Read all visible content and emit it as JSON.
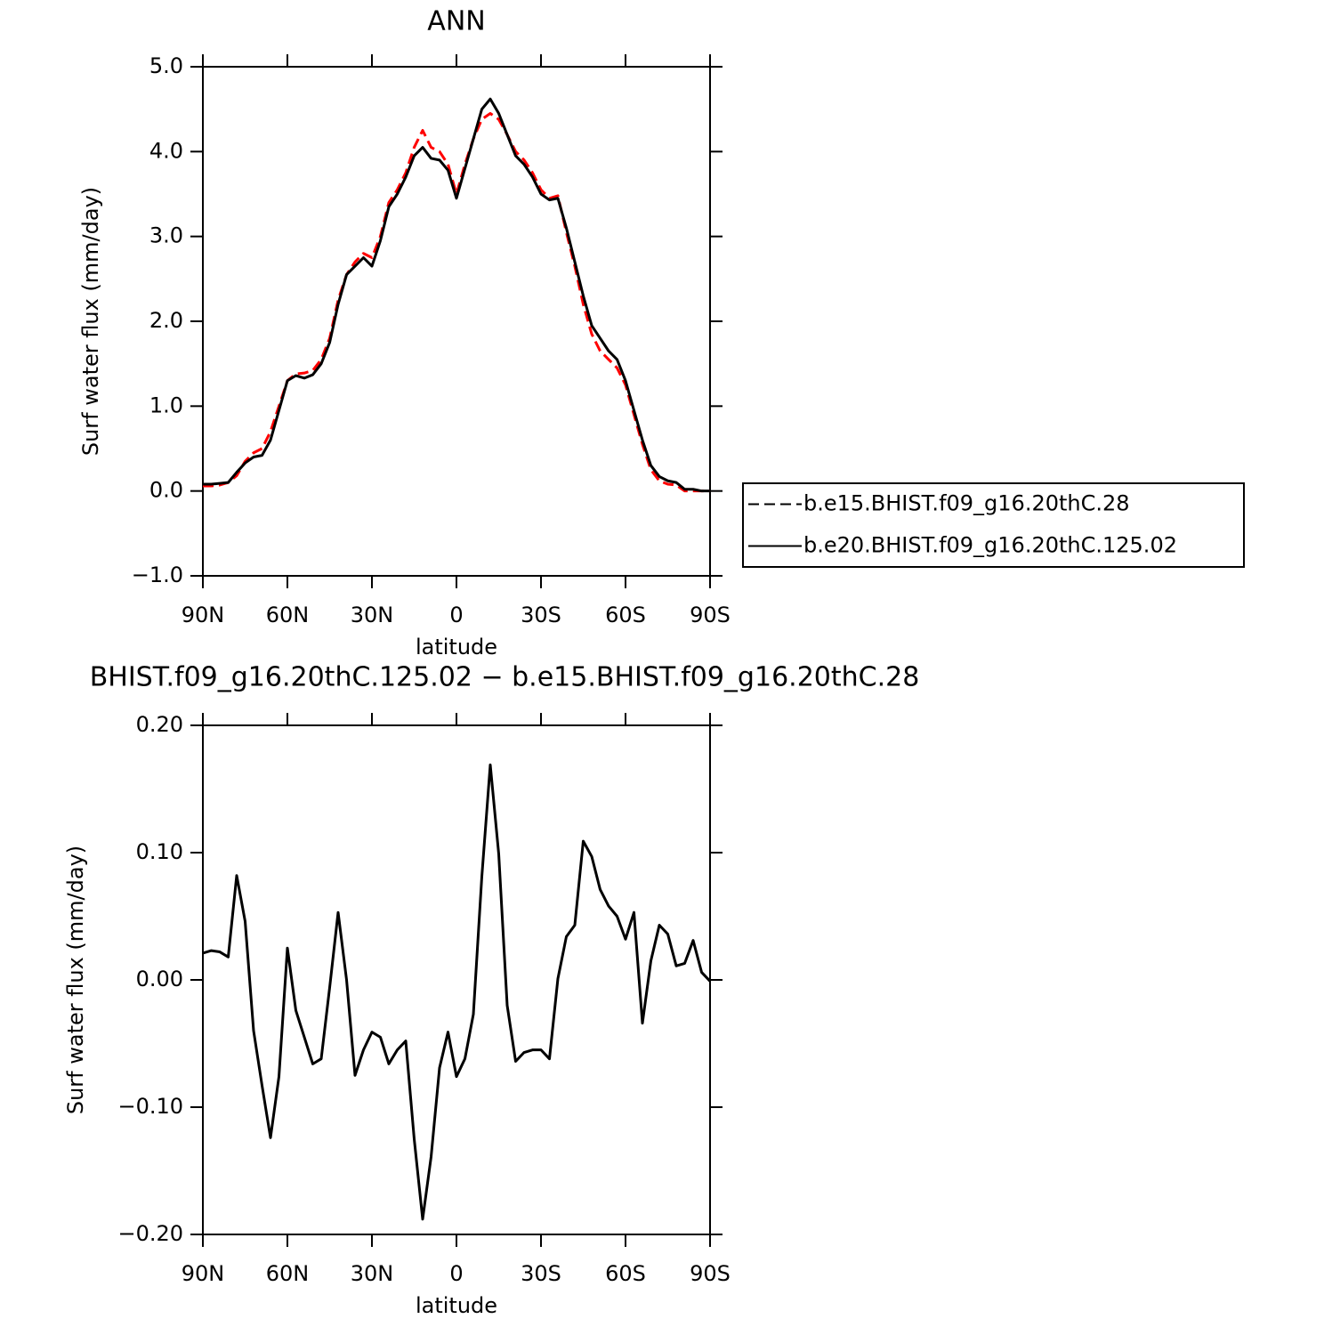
{
  "chart_data": [
    {
      "type": "line",
      "title": "ANN",
      "xlabel": "latitude",
      "ylabel": "Surf water flux (mm/day)",
      "x": [
        90,
        87,
        84,
        81,
        78,
        75,
        72,
        69,
        66,
        63,
        60,
        57,
        54,
        51,
        48,
        45,
        42,
        39,
        36,
        33,
        30,
        27,
        24,
        21,
        18,
        15,
        12,
        9,
        6,
        3,
        0,
        -3,
        -6,
        -9,
        -12,
        -15,
        -18,
        -21,
        -24,
        -27,
        -30,
        -33,
        -36,
        -39,
        -42,
        -45,
        -48,
        -51,
        -54,
        -57,
        -60,
        -63,
        -66,
        -69,
        -72,
        -75,
        -78,
        -81,
        -84,
        -87,
        -90
      ],
      "series": [
        {
          "name": "b.e15.BHIST.f09_g16.20thC.28",
          "color": "#ff0000",
          "dash": true,
          "values": [
            0.06,
            0.06,
            0.07,
            0.1,
            0.18,
            0.35,
            0.45,
            0.5,
            0.7,
            1.0,
            1.3,
            1.38,
            1.39,
            1.42,
            1.55,
            1.8,
            2.25,
            2.55,
            2.7,
            2.8,
            2.75,
            3.0,
            3.4,
            3.55,
            3.75,
            4.05,
            4.25,
            4.05,
            4.0,
            3.85,
            3.5,
            3.85,
            4.15,
            4.38,
            4.45,
            4.38,
            4.2,
            4.0,
            3.9,
            3.75,
            3.55,
            3.45,
            3.48,
            3.05,
            2.65,
            2.2,
            1.85,
            1.65,
            1.55,
            1.45,
            1.25,
            0.9,
            0.55,
            0.25,
            0.12,
            0.08,
            0.07,
            0.0,
            0.0,
            0.0,
            0.0
          ]
        },
        {
          "name": "b.e20.BHIST.f09_g16.20thC.125.02",
          "color": "#000000",
          "dash": false,
          "values": [
            0.08,
            0.08,
            0.09,
            0.1,
            0.22,
            0.33,
            0.4,
            0.42,
            0.6,
            0.95,
            1.3,
            1.36,
            1.33,
            1.37,
            1.5,
            1.75,
            2.2,
            2.55,
            2.65,
            2.75,
            2.65,
            2.95,
            3.35,
            3.5,
            3.7,
            3.95,
            4.05,
            3.92,
            3.9,
            3.78,
            3.45,
            3.8,
            4.15,
            4.5,
            4.62,
            4.45,
            4.2,
            3.95,
            3.85,
            3.7,
            3.5,
            3.43,
            3.45,
            3.1,
            2.7,
            2.3,
            1.95,
            1.8,
            1.65,
            1.55,
            1.3,
            0.95,
            0.6,
            0.3,
            0.17,
            0.12,
            0.1,
            0.02,
            0.02,
            0.0,
            0.0
          ]
        }
      ],
      "xlim": [
        90,
        -90
      ],
      "xticks": [
        {
          "value": 90,
          "label": "90N"
        },
        {
          "value": 60,
          "label": "60N"
        },
        {
          "value": 30,
          "label": "30N"
        },
        0,
        {
          "value": -30,
          "label": "30S"
        },
        {
          "value": -60,
          "label": "60S"
        },
        {
          "value": -90,
          "label": "90S"
        }
      ],
      "ylim": [
        -1,
        5
      ],
      "yticks": [
        {
          "value": 5,
          "label": "5.0"
        },
        {
          "value": 4,
          "label": "4.0"
        },
        {
          "value": 3,
          "label": "3.0"
        },
        {
          "value": 2,
          "label": "2.0"
        },
        {
          "value": 1,
          "label": "1.0"
        },
        {
          "value": 0,
          "label": "0.0"
        },
        {
          "value": -1,
          "label": "−1.0"
        }
      ],
      "legend": "right"
    },
    {
      "type": "line",
      "title": "BHIST.f09_g16.20thC.125.02 − b.e15.BHIST.f09_g16.20thC.28",
      "xlabel": "latitude",
      "ylabel": "Surf water flux (mm/day)",
      "color": "#000000",
      "x": [
        90,
        87,
        84,
        81,
        78,
        75,
        72,
        69,
        66,
        63,
        60,
        57,
        54,
        51,
        48,
        45,
        42,
        39,
        36,
        33,
        30,
        27,
        24,
        21,
        18,
        15,
        12,
        9,
        6,
        3,
        0,
        -3,
        -6,
        -9,
        -12,
        -15,
        -18,
        -21,
        -24,
        -27,
        -30,
        -33,
        -36,
        -39,
        -42,
        -45,
        -48,
        -51,
        -54,
        -57,
        -60,
        -63,
        -66,
        -69,
        -72,
        -75,
        -78,
        -81,
        -84,
        -87,
        -90
      ],
      "values": [
        0.021,
        0.023,
        0.022,
        0.018,
        0.082,
        0.046,
        -0.04,
        -0.083,
        -0.124,
        -0.076,
        0.025,
        -0.024,
        -0.045,
        -0.066,
        -0.062,
        -0.006,
        0.053,
        0.0,
        -0.075,
        -0.055,
        -0.041,
        -0.045,
        -0.066,
        -0.055,
        -0.048,
        -0.125,
        -0.188,
        -0.139,
        -0.069,
        -0.041,
        -0.076,
        -0.062,
        -0.027,
        0.081,
        0.169,
        0.099,
        -0.02,
        -0.064,
        -0.057,
        -0.055,
        -0.055,
        -0.062,
        0.001,
        0.034,
        0.043,
        0.109,
        0.097,
        0.071,
        0.058,
        0.05,
        0.032,
        0.053,
        -0.034,
        0.015,
        0.043,
        0.036,
        0.011,
        0.013,
        0.031,
        0.006,
        -0.001
      ],
      "xlim": [
        90,
        -90
      ],
      "xticks": [
        {
          "value": 90,
          "label": "90N"
        },
        {
          "value": 60,
          "label": "60N"
        },
        {
          "value": 30,
          "label": "30N"
        },
        0,
        {
          "value": -30,
          "label": "30S"
        },
        {
          "value": -60,
          "label": "60S"
        },
        {
          "value": -90,
          "label": "90S"
        }
      ],
      "ylim": [
        -0.2,
        0.2
      ],
      "yticks": [
        {
          "value": 0.2,
          "label": "0.20"
        },
        {
          "value": 0.1,
          "label": "0.10"
        },
        {
          "value": 0,
          "label": "0.00"
        },
        {
          "value": -0.1,
          "label": "−0.10"
        },
        {
          "value": -0.2,
          "label": "−0.20"
        }
      ]
    }
  ]
}
